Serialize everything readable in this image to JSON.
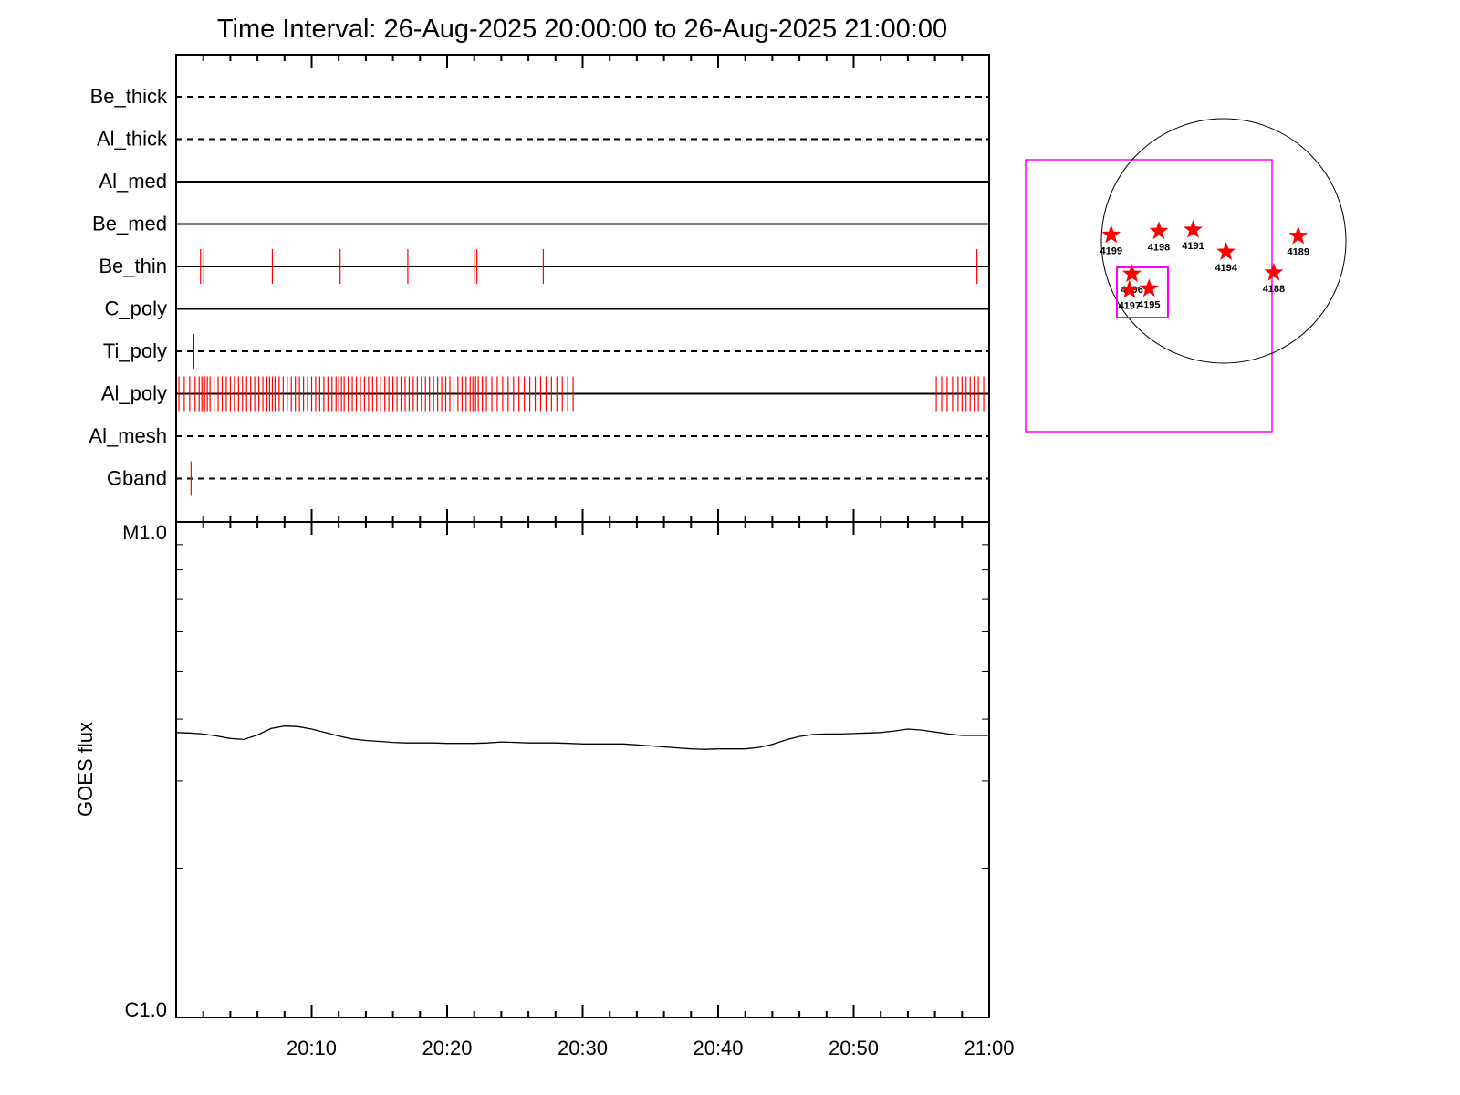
{
  "colors": {
    "axis": "#000000",
    "tick_mark": "#ff0000",
    "ti_mark": "#0000ff",
    "fov_box": "#ff00ff",
    "region_star": "#ff0000",
    "solar_limb": "#000000"
  },
  "chart_data": [
    {
      "type": "event-raster",
      "title": "Time Interval: 26-Aug-2025 20:00:00 to 26-Aug-2025 21:00:00",
      "xlim": [
        "20:00",
        "21:00"
      ],
      "rows": [
        {
          "name": "Be_thick",
          "style": "dashed",
          "marks": []
        },
        {
          "name": "Al_thick",
          "style": "dashed",
          "marks": []
        },
        {
          "name": "Al_med",
          "style": "solid",
          "marks": []
        },
        {
          "name": "Be_med",
          "style": "solid",
          "marks": []
        },
        {
          "name": "Be_thin",
          "style": "solid",
          "mark_color": "red",
          "marks": [
            1.8,
            2.0,
            7.1,
            12.1,
            17.1,
            22.0,
            22.2,
            27.1,
            59.1
          ]
        },
        {
          "name": "C_poly",
          "style": "solid",
          "marks": []
        },
        {
          "name": "Ti_poly",
          "style": "dashed",
          "mark_color": "blue",
          "marks": [
            1.3
          ]
        },
        {
          "name": "Al_poly",
          "style": "solid",
          "mark_color": "red",
          "marks": [
            0.2,
            0.6,
            1.0,
            1.4,
            1.7,
            1.9,
            2.1,
            2.3,
            2.5,
            2.8,
            3.1,
            3.4,
            3.7,
            4.0,
            4.3,
            4.6,
            4.9,
            5.2,
            5.5,
            5.8,
            6.1,
            6.4,
            6.7,
            6.9,
            7.1,
            7.3,
            7.6,
            7.9,
            8.2,
            8.5,
            8.8,
            9.1,
            9.4,
            9.7,
            10.0,
            10.3,
            10.6,
            10.9,
            11.2,
            11.5,
            11.8,
            12.0,
            12.2,
            12.4,
            12.7,
            13.0,
            13.3,
            13.6,
            13.9,
            14.2,
            14.5,
            14.8,
            15.1,
            15.4,
            15.7,
            16.0,
            16.3,
            16.6,
            16.9,
            17.2,
            17.5,
            17.8,
            18.1,
            18.4,
            18.7,
            19.0,
            19.3,
            19.6,
            19.9,
            20.2,
            20.5,
            20.8,
            21.1,
            21.4,
            21.7,
            21.9,
            22.1,
            22.3,
            22.6,
            22.9,
            23.3,
            23.7,
            24.1,
            24.5,
            24.9,
            25.3,
            25.7,
            26.1,
            26.5,
            26.9,
            27.3,
            27.7,
            28.1,
            28.5,
            28.9,
            29.3,
            56.1,
            56.5,
            56.9,
            57.3,
            57.7,
            58.0,
            58.3,
            58.6,
            58.9,
            59.2,
            59.6
          ]
        },
        {
          "name": "Al_mesh",
          "style": "dashed",
          "marks": []
        },
        {
          "name": "Gband",
          "style": "dashed",
          "mark_color": "red",
          "marks": [
            1.1
          ]
        }
      ]
    },
    {
      "type": "line",
      "ylabel": "GOES flux",
      "y_top_label": "M1.0",
      "y_bottom_label": "C1.0",
      "xtick_labels": [
        "20:10",
        "20:20",
        "20:30",
        "20:40",
        "20:50",
        "21:00"
      ],
      "x": [
        0,
        1,
        2,
        3,
        4,
        5,
        6,
        7,
        8,
        9,
        10,
        11,
        12,
        13,
        14,
        15,
        16,
        17,
        18,
        19,
        20,
        21,
        22,
        23,
        24,
        25,
        26,
        27,
        28,
        29,
        30,
        31,
        32,
        33,
        34,
        35,
        36,
        37,
        38,
        39,
        40,
        41,
        42,
        43,
        44,
        45,
        46,
        47,
        48,
        49,
        50,
        51,
        52,
        53,
        54,
        55,
        56,
        57,
        58,
        59,
        60
      ],
      "series": [
        {
          "values": [
            0.575,
            0.574,
            0.572,
            0.568,
            0.563,
            0.561,
            0.57,
            0.583,
            0.588,
            0.587,
            0.582,
            0.575,
            0.568,
            0.562,
            0.559,
            0.557,
            0.555,
            0.554,
            0.554,
            0.554,
            0.553,
            0.553,
            0.553,
            0.554,
            0.556,
            0.555,
            0.554,
            0.554,
            0.554,
            0.553,
            0.552,
            0.552,
            0.552,
            0.552,
            0.55,
            0.548,
            0.546,
            0.544,
            0.542,
            0.541,
            0.542,
            0.542,
            0.542,
            0.545,
            0.551,
            0.56,
            0.567,
            0.571,
            0.572,
            0.572,
            0.573,
            0.574,
            0.575,
            0.578,
            0.582,
            0.58,
            0.576,
            0.572,
            0.569,
            0.569,
            0.569
          ]
        }
      ]
    },
    {
      "type": "scatter",
      "description": "solar disk locator",
      "regions": [
        {
          "label": "4199",
          "x": -0.92,
          "y": 0.05
        },
        {
          "label": "4198",
          "x": -0.53,
          "y": 0.08
        },
        {
          "label": "4191",
          "x": -0.25,
          "y": 0.09
        },
        {
          "label": "4194",
          "x": 0.02,
          "y": -0.09
        },
        {
          "label": "4189",
          "x": 0.61,
          "y": 0.04
        },
        {
          "label": "4196",
          "x": -0.75,
          "y": -0.27
        },
        {
          "label": "4197",
          "x": -0.77,
          "y": -0.4
        },
        {
          "label": "4195",
          "x": -0.61,
          "y": -0.39
        },
        {
          "label": "4188",
          "x": 0.41,
          "y": -0.26
        }
      ]
    }
  ]
}
